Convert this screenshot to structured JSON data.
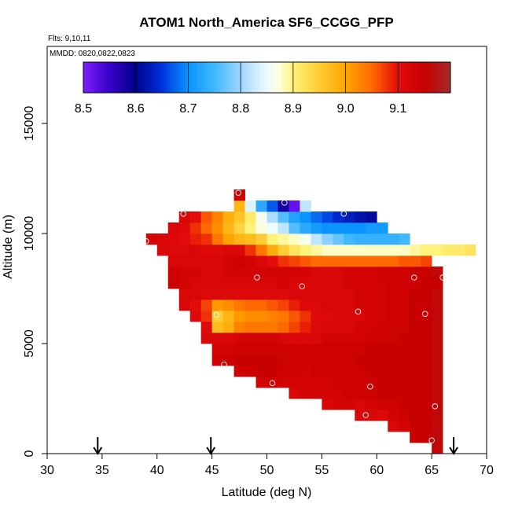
{
  "chart_data": {
    "type": "heatmap",
    "title": "ATOM1 North_America SF6_CCGG_PFP",
    "flights_label": "Flts: 9,10,11",
    "dates_label": "MMDD: 0820,0822,0823",
    "xlabel": "Latitude (deg N)",
    "ylabel": "Altitude (m)",
    "xlim": [
      30,
      70
    ],
    "ylim": [
      0,
      18500
    ],
    "xticks": [
      30,
      35,
      40,
      45,
      50,
      55,
      60,
      65,
      70
    ],
    "xtick_labels": [
      "30",
      "35",
      "40",
      "45",
      "50",
      "55",
      "60",
      "65",
      "70"
    ],
    "yticks": [
      0,
      5000,
      10000,
      15000
    ],
    "ytick_labels": [
      "0",
      "5000",
      "10000",
      "15000"
    ],
    "colorbar": {
      "min": 8.5,
      "max": 9.2,
      "tick_values": [
        8.5,
        8.6,
        8.7,
        8.8,
        8.9,
        9.0,
        9.1
      ],
      "tick_labels": [
        "8.5",
        "8.6",
        "8.7",
        "8.8",
        "8.9",
        "9.0",
        "9.1"
      ],
      "stops": [
        [
          8.5,
          "#7f1fff"
        ],
        [
          8.55,
          "#3a00c8"
        ],
        [
          8.6,
          "#00008b"
        ],
        [
          8.65,
          "#0033dd"
        ],
        [
          8.7,
          "#0a93ff"
        ],
        [
          8.75,
          "#40b8ff"
        ],
        [
          8.8,
          "#9fd6ff"
        ],
        [
          8.85,
          "#eefbff"
        ],
        [
          8.875,
          "#ffffd8"
        ],
        [
          8.9,
          "#fff27a"
        ],
        [
          8.95,
          "#ffcc33"
        ],
        [
          9.0,
          "#ffa500"
        ],
        [
          9.05,
          "#ff6a00"
        ],
        [
          9.1,
          "#e40b0b"
        ],
        [
          9.15,
          "#c80000"
        ],
        [
          9.2,
          "#a52a2a"
        ]
      ]
    },
    "grid": {
      "cell_lat": 1.0,
      "cell_alt": 500,
      "rows": [
        {
          "alt": 500,
          "lat0": 65,
          "values": [
            9.16
          ]
        },
        {
          "alt": 1000,
          "lat0": 63,
          "values": [
            9.15,
            9.15,
            9.16
          ]
        },
        {
          "alt": 1500,
          "lat0": 61,
          "values": [
            9.12,
            9.13,
            9.15,
            9.15,
            9.16
          ]
        },
        {
          "alt": 2000,
          "lat0": 58,
          "values": [
            9.12,
            9.12,
            9.11,
            9.13,
            9.14,
            9.15,
            9.15,
            9.16
          ]
        },
        {
          "alt": 2500,
          "lat0": 55,
          "values": [
            9.12,
            9.13,
            9.13,
            9.12,
            9.13,
            9.14,
            9.14,
            9.15,
            9.15,
            9.15,
            9.16
          ]
        },
        {
          "alt": 3000,
          "lat0": 52,
          "values": [
            9.12,
            9.13,
            9.13,
            9.13,
            9.13,
            9.14,
            9.14,
            9.14,
            9.15,
            9.15,
            9.15,
            9.15,
            9.15,
            9.16
          ]
        },
        {
          "alt": 3500,
          "lat0": 49,
          "values": [
            9.13,
            9.14,
            9.13,
            9.13,
            9.13,
            9.13,
            9.13,
            9.14,
            9.14,
            9.14,
            9.14,
            9.15,
            9.15,
            9.15,
            9.15,
            9.15,
            9.16
          ]
        },
        {
          "alt": 4000,
          "lat0": 47,
          "values": [
            9.14,
            9.14,
            9.15,
            9.15,
            9.14,
            9.14,
            9.13,
            9.14,
            9.14,
            9.14,
            9.14,
            9.14,
            9.15,
            9.15,
            9.15,
            9.15,
            9.15,
            9.15,
            9.16
          ]
        },
        {
          "alt": 4500,
          "lat0": 45,
          "values": [
            9.14,
            9.14,
            9.15,
            9.15,
            9.15,
            9.15,
            9.14,
            9.14,
            9.14,
            9.14,
            9.14,
            9.14,
            9.14,
            9.15,
            9.15,
            9.15,
            9.15,
            9.15,
            9.15,
            9.15,
            9.16
          ]
        },
        {
          "alt": 5000,
          "lat0": 45,
          "values": [
            9.13,
            9.13,
            9.14,
            9.14,
            9.14,
            9.14,
            9.14,
            9.14,
            9.14,
            9.14,
            9.14,
            9.14,
            9.14,
            9.14,
            9.15,
            9.15,
            9.15,
            9.15,
            9.15,
            9.15,
            9.16
          ]
        },
        {
          "alt": 5500,
          "lat0": 44,
          "values": [
            9.12,
            9.12,
            9.12,
            9.13,
            9.13,
            9.13,
            9.13,
            9.12,
            9.12,
            9.12,
            9.12,
            9.13,
            9.13,
            9.13,
            9.13,
            9.14,
            9.14,
            9.14,
            9.15,
            9.15,
            9.15,
            9.16
          ]
        },
        {
          "alt": 6000,
          "lat0": 44,
          "values": [
            9.11,
            8.97,
            8.99,
            9.03,
            9.04,
            9.04,
            9.04,
            9.05,
            9.07,
            9.09,
            9.11,
            9.12,
            9.12,
            9.12,
            9.13,
            9.13,
            9.14,
            9.14,
            9.14,
            9.15,
            9.15,
            9.16
          ]
        },
        {
          "alt": 6500,
          "lat0": 43,
          "values": [
            9.11,
            9.08,
            8.95,
            8.98,
            9.01,
            9.02,
            9.02,
            9.03,
            9.04,
            9.06,
            9.08,
            9.11,
            9.11,
            9.12,
            9.12,
            9.12,
            9.13,
            9.13,
            9.14,
            9.14,
            9.15,
            9.15,
            9.16
          ]
        },
        {
          "alt": 7000,
          "lat0": 42,
          "values": [
            9.12,
            9.1,
            9.07,
            9.01,
            9.02,
            9.04,
            9.05,
            9.05,
            9.06,
            9.07,
            9.09,
            9.11,
            9.11,
            9.12,
            9.12,
            9.12,
            9.13,
            9.13,
            9.13,
            9.14,
            9.14,
            9.15,
            9.15,
            9.16
          ]
        },
        {
          "alt": 7500,
          "lat0": 42,
          "values": [
            9.12,
            9.12,
            9.11,
            9.11,
            9.11,
            9.11,
            9.11,
            9.11,
            9.11,
            9.11,
            9.12,
            9.12,
            9.12,
            9.12,
            9.12,
            9.12,
            9.13,
            9.13,
            9.13,
            9.14,
            9.14,
            9.15,
            9.15,
            9.16
          ]
        },
        {
          "alt": 8000,
          "lat0": 41,
          "values": [
            9.14,
            9.13,
            9.12,
            9.12,
            9.12,
            9.12,
            9.12,
            9.12,
            9.12,
            9.12,
            9.13,
            9.12,
            9.12,
            9.12,
            9.12,
            9.12,
            9.13,
            9.13,
            9.13,
            9.13,
            9.14,
            9.14,
            9.14,
            9.15,
            9.15
          ]
        },
        {
          "alt": 8500,
          "lat0": 41,
          "values": [
            9.14,
            9.13,
            9.13,
            9.12,
            9.12,
            9.13,
            9.13,
            9.13,
            9.13,
            9.13,
            9.13,
            9.13,
            9.13,
            9.12,
            9.12,
            9.12,
            9.13,
            9.13,
            9.13,
            9.14,
            9.14,
            9.14,
            9.15,
            9.15,
            9.16
          ]
        },
        {
          "alt": 9000,
          "lat0": 41,
          "values": [
            9.12,
            9.12,
            9.12,
            9.12,
            9.12,
            9.13,
            9.14,
            9.13,
            9.12,
            9.1,
            9.08,
            9.07,
            9.06,
            9.05,
            9.05,
            9.05,
            9.05,
            9.05,
            9.05,
            9.05,
            9.05,
            9.06,
            9.06,
            9.07
          ]
        },
        {
          "alt": 9500,
          "lat0": 40,
          "values": [
            9.12,
            9.11,
            9.11,
            9.12,
            9.11,
            9.11,
            9.12,
            9.12,
            9.08,
            9.04,
            8.99,
            8.95,
            8.92,
            8.9,
            8.89,
            8.88,
            8.88,
            8.88,
            8.88,
            8.88,
            8.88,
            8.88,
            8.88,
            8.89,
            8.9,
            8.9,
            8.91,
            8.91,
            8.92
          ]
        },
        {
          "alt": 10000,
          "lat0": 39,
          "values": [
            9.13,
            9.12,
            9.11,
            9.1,
            9.09,
            9.08,
            9.04,
            9.0,
            8.98,
            8.97,
            8.95,
            8.9,
            8.89,
            8.88,
            8.86,
            8.82,
            8.79,
            8.77,
            8.75,
            8.74,
            8.74,
            8.74,
            8.74,
            8.75
          ]
        },
        {
          "alt": 10500,
          "lat0": 41,
          "values": [
            9.12,
            9.11,
            9.08,
            9.05,
            9.02,
            8.98,
            8.94,
            8.9,
            8.87,
            8.85,
            8.82,
            8.76,
            8.73,
            8.71,
            8.7,
            8.7,
            8.7,
            8.7,
            8.71,
            8.71
          ]
        },
        {
          "alt": 11000,
          "lat0": 42,
          "values": [
            9.12,
            9.1,
            9.06,
            9.03,
            8.99,
            8.96,
            8.91,
            8.86,
            8.81,
            8.76,
            8.72,
            8.7,
            8.68,
            8.66,
            8.64,
            8.63,
            8.62,
            8.61
          ]
        },
        {
          "alt": 11500,
          "lat0": 47,
          "values": [
            8.98,
            8.84,
            8.73,
            8.67,
            8.58,
            8.52,
            8.82
          ]
        },
        {
          "alt": 12000,
          "lat0": 47,
          "values": [
            9.14
          ]
        }
      ]
    },
    "samples": [
      {
        "lat": 47.4,
        "alt": 11850
      },
      {
        "lat": 51.6,
        "alt": 11400
      },
      {
        "lat": 42.4,
        "alt": 10900
      },
      {
        "lat": 57.0,
        "alt": 10900
      },
      {
        "lat": 39.0,
        "alt": 9650
      },
      {
        "lat": 49.1,
        "alt": 8000
      },
      {
        "lat": 53.2,
        "alt": 7600
      },
      {
        "lat": 63.4,
        "alt": 8000
      },
      {
        "lat": 66.0,
        "alt": 8000
      },
      {
        "lat": 45.4,
        "alt": 6300
      },
      {
        "lat": 58.3,
        "alt": 6450
      },
      {
        "lat": 64.4,
        "alt": 6350
      },
      {
        "lat": 46.1,
        "alt": 4050
      },
      {
        "lat": 50.5,
        "alt": 3200
      },
      {
        "lat": 59.4,
        "alt": 3050
      },
      {
        "lat": 65.3,
        "alt": 2150
      },
      {
        "lat": 59.0,
        "alt": 1750
      },
      {
        "lat": 65.0,
        "alt": 600
      }
    ],
    "arrows": [
      {
        "lat": 34.6
      },
      {
        "lat": 44.9
      },
      {
        "lat": 67.0
      }
    ]
  }
}
